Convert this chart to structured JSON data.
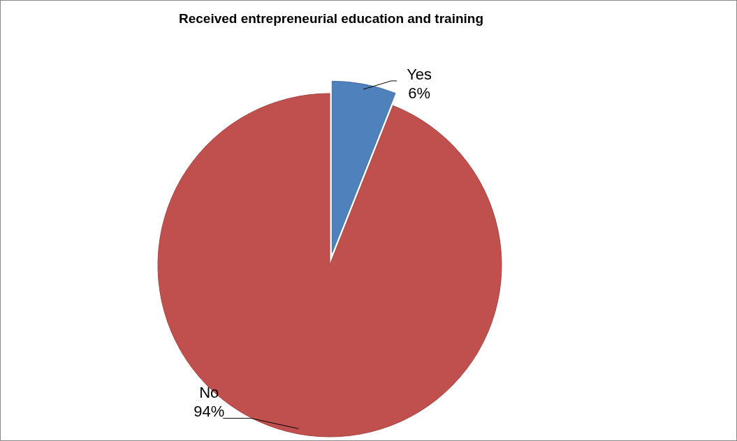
{
  "chart_data": {
    "type": "pie",
    "title": "Received entrepreneurial education and training",
    "categories": [
      "Yes",
      "No"
    ],
    "values": [
      6,
      94
    ],
    "colors": [
      "#4f81bd",
      "#c0504d"
    ],
    "value_labels": [
      "6%",
      "94%"
    ],
    "legend": false
  }
}
